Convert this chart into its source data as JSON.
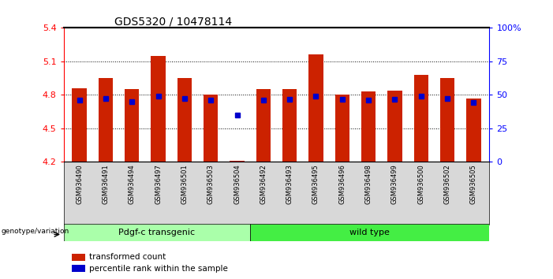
{
  "title": "GDS5320 / 10478114",
  "samples": [
    "GSM936490",
    "GSM936491",
    "GSM936494",
    "GSM936497",
    "GSM936501",
    "GSM936503",
    "GSM936504",
    "GSM936492",
    "GSM936493",
    "GSM936495",
    "GSM936496",
    "GSM936498",
    "GSM936499",
    "GSM936500",
    "GSM936502",
    "GSM936505"
  ],
  "bar_tops": [
    4.86,
    4.95,
    4.85,
    5.15,
    4.95,
    4.8,
    4.21,
    4.85,
    4.85,
    5.16,
    4.8,
    4.83,
    4.84,
    4.98,
    4.95,
    4.77
  ],
  "blue_y": [
    4.75,
    4.77,
    4.74,
    4.79,
    4.77,
    4.75,
    4.62,
    4.75,
    4.76,
    4.79,
    4.76,
    4.75,
    4.76,
    4.79,
    4.77,
    4.73
  ],
  "bar_base": 4.2,
  "ymin": 4.2,
  "ymax": 5.4,
  "yticks": [
    4.2,
    4.5,
    4.8,
    5.1,
    5.4
  ],
  "ytick_labels": [
    "4.2",
    "4.5",
    "4.8",
    "5.1",
    "5.4"
  ],
  "right_yticks": [
    0,
    25,
    50,
    75,
    100
  ],
  "right_ytick_labels": [
    "0",
    "25",
    "50",
    "75",
    "100%"
  ],
  "bar_color": "#cc2200",
  "blue_color": "#0000cc",
  "group1_label": "Pdgf-c transgenic",
  "group2_label": "wild type",
  "group1_color": "#aaffaa",
  "group2_color": "#44ee44",
  "group1_count": 7,
  "group2_count": 9,
  "legend_transformed": "transformed count",
  "legend_percentile": "percentile rank within the sample",
  "genotype_label": "genotype/variation",
  "tick_area_color": "#d8d8d8"
}
